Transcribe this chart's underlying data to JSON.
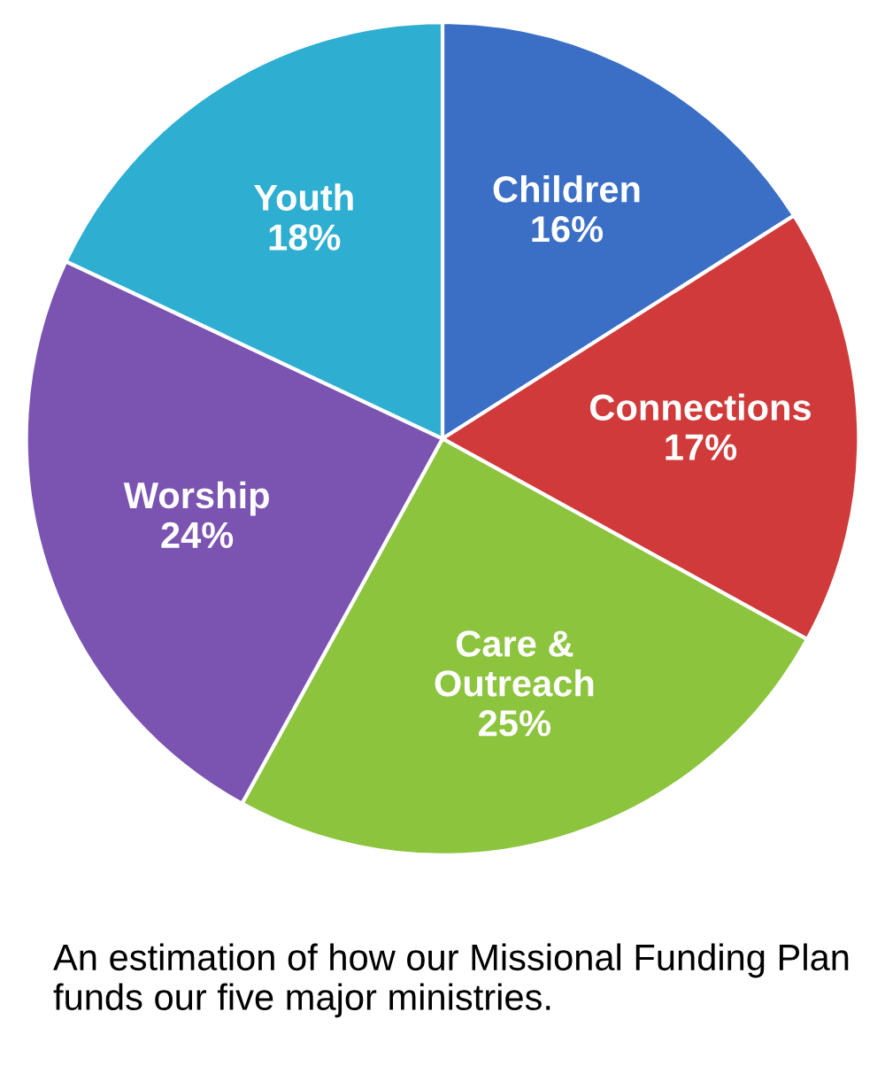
{
  "chart_data": {
    "type": "pie",
    "categories": [
      "Children",
      "Connections",
      "Care &\nOutreach",
      "Worship",
      "Youth"
    ],
    "values": [
      16,
      17,
      25,
      24,
      18
    ],
    "value_labels": [
      "16%",
      "17%",
      "25%",
      "24%",
      "18%"
    ],
    "colors": [
      "#3b6fc6",
      "#d03a3a",
      "#8cc43e",
      "#7b54b2",
      "#2eaed0"
    ],
    "annotations": [
      "An estimation of how our Missional Funding Plan funds our five major ministries."
    ]
  }
}
